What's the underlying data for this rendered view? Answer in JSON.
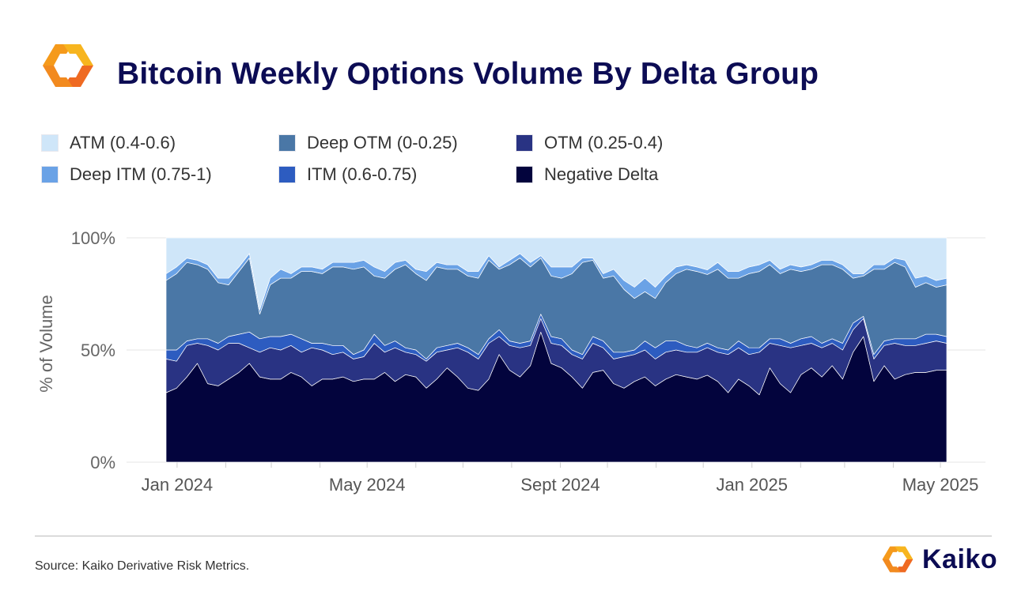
{
  "header": {
    "title": "Bitcoin Weekly Options Volume By Delta Group",
    "logo_icon": "kaiko-logo-icon"
  },
  "colors": {
    "atm": "#cfe6f9",
    "deep_itm": "#6aa2e6",
    "deep_otm": "#4a77a6",
    "itm": "#2d5cc0",
    "otm": "#293383",
    "negative_delta": "#03043d",
    "title": "#0c0c54",
    "logo_orange": "#f59a1b",
    "logo_red": "#ef6a22"
  },
  "legend": [
    {
      "label": "ATM (0.4-0.6)",
      "color": "#cfe6f9"
    },
    {
      "label": "Deep OTM (0-0.25)",
      "color": "#4a77a6"
    },
    {
      "label": "OTM (0.25-0.4)",
      "color": "#293383"
    },
    {
      "label": "Deep ITM (0.75-1)",
      "color": "#6aa2e6"
    },
    {
      "label": "ITM (0.6-0.75)",
      "color": "#2d5cc0"
    },
    {
      "label": "Negative Delta",
      "color": "#03043d"
    }
  ],
  "chart_data": {
    "type": "area",
    "stacked": true,
    "ylabel": "% of Volume",
    "y_ticks": [
      "0%",
      "50%",
      "100%"
    ],
    "ylim": [
      0,
      100
    ],
    "x_ticks": [
      "Jan 2024",
      "May 2024",
      "Sept 2024",
      "Jan 2025",
      "May 2025"
    ],
    "x_tick_dates": [
      "2024-01-01",
      "2024-05-01",
      "2024-09-01",
      "2025-01-01",
      "2025-05-01"
    ],
    "x_start": "2023-12-25",
    "x_end": "2025-05-05",
    "grid": true,
    "legend_position": "top",
    "series": [
      {
        "name": "Negative Delta",
        "color": "#03043d",
        "values": [
          31,
          33,
          38,
          44,
          35,
          34,
          37,
          40,
          44,
          38,
          37,
          37,
          40,
          38,
          34,
          37,
          37,
          38,
          36,
          37,
          37,
          40,
          36,
          39,
          38,
          33,
          37,
          42,
          38,
          33,
          32,
          37,
          48,
          41,
          38,
          43,
          58,
          44,
          42,
          38,
          33,
          40,
          41,
          35,
          33,
          36,
          38,
          34,
          37,
          39,
          38,
          37,
          38,
          36,
          31,
          37,
          34,
          30,
          42,
          35,
          31,
          39,
          42,
          38,
          43,
          37,
          49,
          56,
          36,
          43,
          37,
          39,
          40,
          40,
          41,
          41
        ]
      },
      {
        "name": "OTM (0.25-0.4)",
        "color": "#293383",
        "values": [
          15,
          12,
          14,
          9,
          17,
          16,
          16,
          13,
          7,
          11,
          14,
          13,
          12,
          11,
          17,
          13,
          11,
          11,
          10,
          10,
          16,
          9,
          15,
          10,
          10,
          12,
          12,
          8,
          13,
          16,
          14,
          16,
          8,
          11,
          13,
          9,
          6,
          9,
          10,
          10,
          13,
          13,
          10,
          11,
          14,
          12,
          12,
          12,
          12,
          11,
          11,
          12,
          12,
          13,
          17,
          14,
          14,
          19,
          11,
          17,
          20,
          13,
          11,
          13,
          10,
          13,
          10,
          8,
          10,
          9,
          16,
          13,
          12,
          13,
          13,
          12
        ]
      },
      {
        "name": "ITM (0.6-0.75)",
        "color": "#2d5cc0",
        "values": [
          4,
          5,
          2,
          2,
          3,
          3,
          3,
          4,
          7,
          6,
          5,
          6,
          5,
          6,
          2,
          3,
          4,
          3,
          2,
          3,
          4,
          3,
          3,
          2,
          2,
          1,
          2,
          2,
          2,
          2,
          2,
          2,
          3,
          2,
          2,
          2,
          2,
          3,
          3,
          2,
          2,
          3,
          3,
          3,
          2,
          2,
          4,
          5,
          5,
          4,
          3,
          2,
          2,
          2,
          2,
          3,
          3,
          2,
          2,
          3,
          2,
          3,
          3,
          2,
          2,
          3,
          3,
          1,
          2,
          2,
          2,
          3,
          3,
          4,
          3,
          3
        ]
      },
      {
        "name": "Deep OTM (0-0.25)",
        "color": "#4a77a6",
        "values": [
          31,
          34,
          35,
          33,
          31,
          27,
          23,
          28,
          33,
          11,
          23,
          26,
          25,
          30,
          32,
          31,
          35,
          35,
          38,
          37,
          26,
          30,
          32,
          37,
          34,
          35,
          36,
          34,
          33,
          32,
          34,
          35,
          27,
          34,
          38,
          33,
          25,
          27,
          27,
          34,
          41,
          34,
          28,
          34,
          28,
          23,
          22,
          22,
          26,
          30,
          34,
          34,
          30,
          35,
          32,
          28,
          33,
          34,
          33,
          29,
          33,
          30,
          30,
          35,
          33,
          33,
          20,
          18,
          38,
          32,
          34,
          32,
          23,
          23,
          21,
          23
        ]
      },
      {
        "name": "Deep ITM (0.75-1)",
        "color": "#6aa2e6",
        "values": [
          3,
          3,
          2,
          2,
          2,
          2,
          3,
          2,
          2,
          2,
          3,
          4,
          2,
          2,
          2,
          2,
          2,
          2,
          3,
          3,
          4,
          3,
          3,
          2,
          2,
          4,
          2,
          2,
          2,
          2,
          3,
          2,
          1,
          2,
          2,
          2,
          1,
          4,
          5,
          3,
          2,
          1,
          2,
          3,
          4,
          5,
          6,
          5,
          3,
          3,
          2,
          2,
          2,
          3,
          3,
          3,
          3,
          3,
          2,
          2,
          2,
          2,
          2,
          2,
          2,
          2,
          2,
          1,
          2,
          2,
          2,
          3,
          4,
          3,
          3,
          3
        ]
      },
      {
        "name": "ATM (0.4-0.6)",
        "color": "#cfe6f9",
        "values": [
          16,
          13,
          9,
          10,
          12,
          18,
          18,
          13,
          7,
          32,
          18,
          14,
          16,
          13,
          13,
          14,
          11,
          11,
          11,
          10,
          13,
          15,
          11,
          10,
          14,
          15,
          11,
          12,
          12,
          15,
          15,
          8,
          13,
          10,
          7,
          11,
          8,
          13,
          13,
          13,
          9,
          9,
          16,
          14,
          19,
          22,
          18,
          22,
          17,
          13,
          12,
          13,
          14,
          11,
          15,
          15,
          13,
          12,
          10,
          14,
          12,
          13,
          12,
          10,
          10,
          12,
          16,
          16,
          12,
          12,
          9,
          10,
          18,
          17,
          19,
          18
        ]
      }
    ]
  },
  "footer": {
    "source": "Source: Kaiko Derivative Risk Metrics.",
    "brand": "Kaiko",
    "brand_icon": "kaiko-logo-icon"
  }
}
